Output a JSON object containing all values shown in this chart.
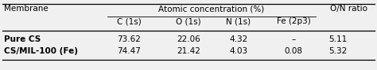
{
  "col_headers": [
    "Membrane",
    "C (1s)",
    "O (1s)",
    "N (1s)",
    "Fe (2p3)",
    "O/N ratio"
  ],
  "group_header": "Atomic concentration (%)",
  "rows": [
    [
      "Pure CS",
      "73.62",
      "22.06",
      "4.32",
      "–",
      "5.11"
    ],
    [
      "CS/MIL-100 (Fe)",
      "74.47",
      "21.42",
      "4.03",
      "0.08",
      "5.32"
    ]
  ],
  "background": "#f0f0f0",
  "text_color": "#000000",
  "line_color": "#000000",
  "font_size": 7.5
}
